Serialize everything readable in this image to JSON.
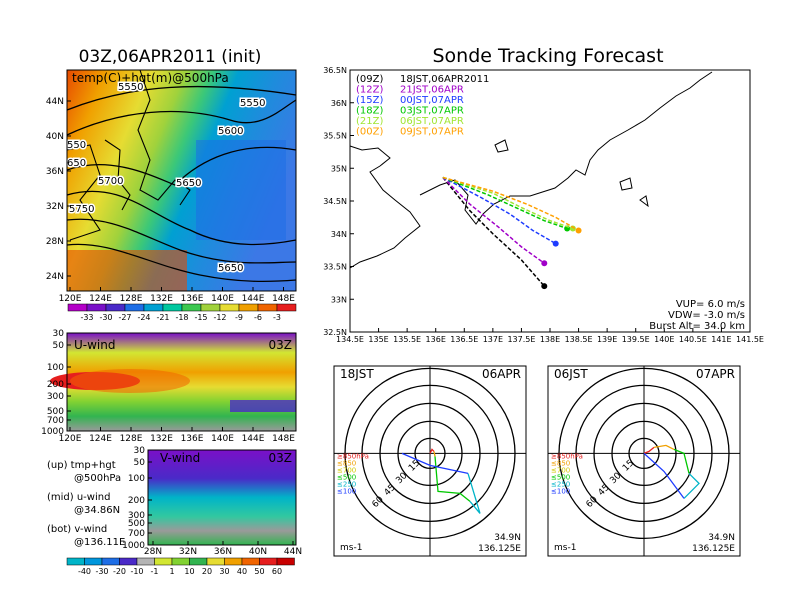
{
  "titles": {
    "left": "03Z,06APR2011 (init)",
    "right": "Sonde Tracking Forecast"
  },
  "colors": {
    "z09": "#000000",
    "z12": "#a000c8",
    "z15": "#1e3cff",
    "z18": "#00c800",
    "z21": "#a0e632",
    "z00": "#ffa000"
  },
  "map_panel": {
    "label": "temp(C)+hgt(m)@500hPa",
    "y_ticks": [
      "44N",
      "40N",
      "36N",
      "32N",
      "28N",
      "24N"
    ],
    "x_ticks": [
      "120E",
      "124E",
      "128E",
      "132E",
      "136E",
      "140E",
      "144E",
      "148E"
    ],
    "contour_labels": [
      "5550",
      "5550",
      "5600",
      "5650",
      "5700",
      "5750",
      "5650",
      "550",
      "650"
    ],
    "colorbar": [
      "-33",
      "-30",
      "-27",
      "-24",
      "-21",
      "-18",
      "-15",
      "-12",
      "-9",
      "-6",
      "-3"
    ]
  },
  "uwind_panel": {
    "label": "U-wind",
    "time": "03Z",
    "y_ticks": [
      "30",
      "50",
      "100",
      "200",
      "300",
      "500",
      "700",
      "1000"
    ],
    "x_ticks": [
      "120E",
      "124E",
      "128E",
      "132E",
      "136E",
      "140E",
      "144E",
      "148E"
    ]
  },
  "vwind_panel": {
    "label": "V-wind",
    "time": "03Z",
    "y_ticks": [
      "30",
      "50",
      "100",
      "200",
      "300",
      "500",
      "700",
      "1000"
    ],
    "x_ticks": [
      "28N",
      "32N",
      "36N",
      "40N",
      "44N"
    ],
    "colorbar": [
      "-40",
      "-30",
      "-20",
      "-10",
      "-1",
      "1",
      "10",
      "20",
      "30",
      "40",
      "50",
      "60"
    ]
  },
  "legend_left": {
    "up_a": "(up) tmp+hgt",
    "up_b": "@500hPa",
    "mid_a": "(mid) u-wind",
    "mid_b": "@34.86N",
    "bot_a": "(bot) v-wind",
    "bot_b": "@136.11E"
  },
  "track_panel": {
    "y_ticks": [
      "36.5N",
      "36N",
      "35.5N",
      "35N",
      "34.5N",
      "34N",
      "33.5N",
      "33N",
      "32.5N"
    ],
    "x_ticks": [
      "134.5E",
      "135E",
      "135.5E",
      "136E",
      "136.5E",
      "137E",
      "137.5E",
      "138E",
      "138.5E",
      "139E",
      "139.5E",
      "140E",
      "140.5E",
      "141E",
      "141.5E"
    ],
    "legend": [
      {
        "run": "(09Z)",
        "time": "18JST,06APR2011"
      },
      {
        "run": "(12Z)",
        "time": "21JST,06APR"
      },
      {
        "run": "(15Z)",
        "time": "00JST,07APR"
      },
      {
        "run": "(18Z)",
        "time": "03JST,07APR"
      },
      {
        "run": "(21Z)",
        "time": "06JST,07APR"
      },
      {
        "run": "(00Z)",
        "time": "09JST,07APR"
      }
    ],
    "info": {
      "vup": "VUP=  6.0  m/s",
      "vdw": "VDW= -3.0  m/s",
      "burst": "Burst Alt=  34.0  km"
    }
  },
  "chart_data": [
    {
      "type": "line",
      "title": "Sonde Tracking Forecast",
      "xlim": [
        134.5,
        141.5
      ],
      "ylim": [
        32.5,
        36.5
      ],
      "series": [
        {
          "name": "(09Z) 18JST,06APR2011",
          "x": [
            136.125,
            136.6,
            137.0,
            137.5,
            137.9
          ],
          "y": [
            34.86,
            34.35,
            34.0,
            33.6,
            33.2
          ]
        },
        {
          "name": "(12Z) 21JST,06APR",
          "x": [
            136.125,
            136.6,
            137.1,
            137.5,
            137.9
          ],
          "y": [
            34.86,
            34.45,
            34.1,
            33.8,
            33.55
          ]
        },
        {
          "name": "(15Z) 00JST,07APR",
          "x": [
            136.125,
            136.8,
            137.3,
            137.7,
            138.1
          ],
          "y": [
            34.86,
            34.55,
            34.3,
            34.05,
            33.85
          ]
        },
        {
          "name": "(18Z) 03JST,07APR",
          "x": [
            136.125,
            136.9,
            137.4,
            137.9,
            138.3
          ],
          "y": [
            34.86,
            34.6,
            34.4,
            34.2,
            34.08
          ]
        },
        {
          "name": "(21Z) 06JST,07APR",
          "x": [
            136.125,
            137.0,
            137.5,
            138.0,
            138.4
          ],
          "y": [
            34.86,
            34.62,
            34.4,
            34.2,
            34.08
          ]
        },
        {
          "name": "(00Z) 09JST,07APR",
          "x": [
            136.125,
            137.0,
            137.6,
            138.1,
            138.5
          ],
          "y": [
            34.86,
            34.65,
            34.45,
            34.25,
            34.05
          ]
        }
      ]
    },
    {
      "type": "line",
      "title": "18JST 06APR",
      "rings": [
        "15",
        "30",
        "45",
        "60"
      ],
      "units": "ms-1",
      "location": [
        "34.9N",
        "136.125E"
      ],
      "levels": [
        "≥850hPa",
        "≤850",
        "≤700",
        "≤500",
        "≤250",
        "≤100"
      ]
    },
    {
      "type": "line",
      "title": "06JST 07APR",
      "rings": [
        "15",
        "30",
        "45",
        "60"
      ],
      "units": "ms-1",
      "location": [
        "34.9N",
        "136.125E"
      ],
      "levels": [
        "≥850hPa",
        "≤850",
        "≤700",
        "≤500",
        "≤250",
        "≤100"
      ]
    }
  ],
  "hodo_left": {
    "time": "18JST",
    "date": "06APR",
    "units": "ms-1",
    "lat": "34.9N",
    "lon": "136.125E"
  },
  "hodo_right": {
    "time": "06JST",
    "date": "07APR",
    "units": "ms-1",
    "lat": "34.9N",
    "lon": "136.125E"
  }
}
